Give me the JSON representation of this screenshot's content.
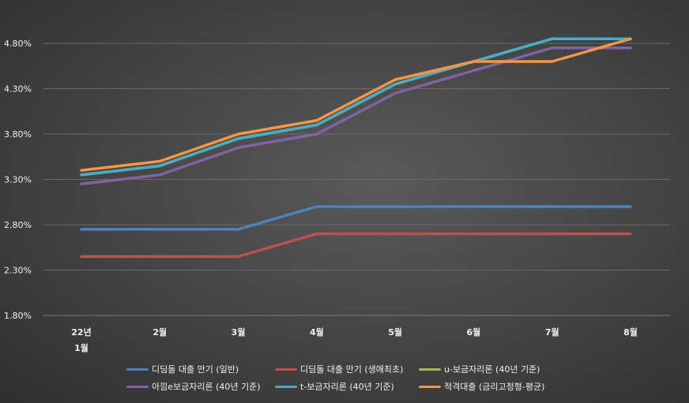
{
  "chart_data": {
    "type": "line",
    "title": "",
    "xlabel": "",
    "ylabel": "",
    "categories": [
      [
        "22년",
        "1월"
      ],
      [
        "2월"
      ],
      [
        "3월"
      ],
      [
        "4월"
      ],
      [
        "5월"
      ],
      [
        "6월"
      ],
      [
        "7월"
      ],
      [
        "8월"
      ]
    ],
    "y_ticks": [
      "1.80%",
      "2.30%",
      "2.80%",
      "3.30%",
      "3.80%",
      "4.30%",
      "4.80%"
    ],
    "ylim": [
      1.8,
      5.15
    ],
    "grid": true,
    "legend_position": "bottom",
    "series": [
      {
        "name": "디딤돌 대출 만기 (일반)",
        "color": "#4f81bd",
        "values": [
          2.75,
          2.75,
          2.75,
          3.0,
          3.0,
          3.0,
          3.0,
          3.0
        ]
      },
      {
        "name": "디딤돌 대출 만기 (생애최초)",
        "color": "#c0504d",
        "values": [
          2.45,
          2.45,
          2.45,
          2.7,
          2.7,
          2.7,
          2.7,
          2.7
        ]
      },
      {
        "name": "u-보금자리론 (40년 기준)",
        "color": "#9bbb59",
        "values": [
          3.35,
          3.45,
          3.75,
          3.9,
          4.35,
          4.6,
          4.85,
          4.85
        ]
      },
      {
        "name": "아낌e보금자리론 (40년 기준)",
        "color": "#8064a2",
        "values": [
          3.25,
          3.35,
          3.65,
          3.8,
          4.25,
          4.5,
          4.75,
          4.75
        ]
      },
      {
        "name": "t-보금자리론 (40년 기준)",
        "color": "#4bacc6",
        "values": [
          3.35,
          3.45,
          3.75,
          3.9,
          4.35,
          4.6,
          4.85,
          4.85
        ]
      },
      {
        "name": "적격대출 (금리고정형-평균)",
        "color": "#f79646",
        "values": [
          3.4,
          3.5,
          3.8,
          3.95,
          4.4,
          4.6,
          4.6,
          4.85
        ]
      }
    ]
  }
}
